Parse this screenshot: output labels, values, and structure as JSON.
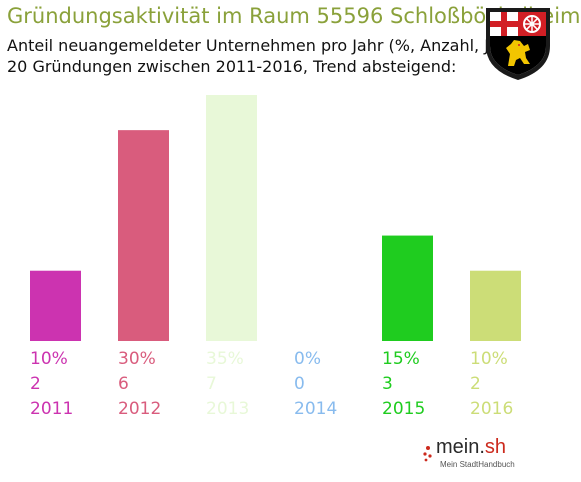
{
  "header": {
    "title": "Gründungsaktivität im Raum 55596 Schloßböckelheim",
    "subtitle_line1": "Anteil neuangemeldeter Unternehmen pro Jahr (%, Anzahl, Jahr)",
    "subtitle_line2": "20 Gründungen zwischen 2011-2016, Trend absteigend:"
  },
  "crest": {
    "icon": "coat-of-arms-rhineland-palatinate"
  },
  "branding": {
    "name_main": "mein.",
    "name_suffix": "sh",
    "tagline": "Mein StadtHandbuch"
  },
  "chart_data": {
    "type": "bar",
    "categories": [
      "2011",
      "2012",
      "2013",
      "2014",
      "2015",
      "2016"
    ],
    "percent_labels": [
      "10%",
      "30%",
      "35%",
      "0%",
      "15%",
      "10%"
    ],
    "values": [
      10,
      30,
      35,
      0,
      15,
      10
    ],
    "counts": [
      2,
      6,
      7,
      0,
      3,
      2
    ],
    "colors": [
      "#cc33b0",
      "#d95c7d",
      "#e8f8d8",
      "#88bbee",
      "#1fcc1f",
      "#ccdd77"
    ],
    "ylim": [
      0,
      35
    ]
  }
}
